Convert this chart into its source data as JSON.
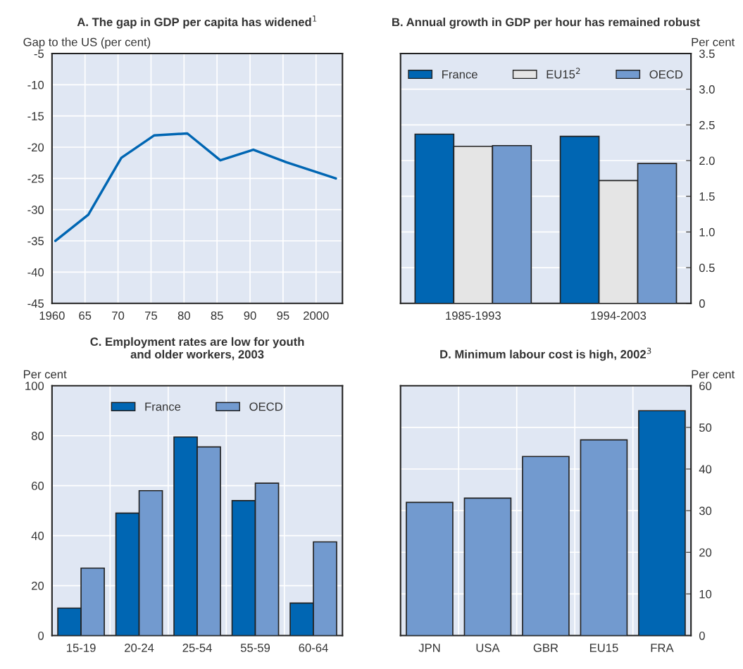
{
  "chart_data": [
    {
      "type": "line",
      "title": "A. The gap in GDP per capita has widened$^{1}$",
      "ylabel": "Gap to the US (per cent)",
      "x": [
        1960.5,
        1965.5,
        1970.5,
        1975.5,
        1980.5,
        1985.5,
        1990.5,
        1995.5,
        2003
      ],
      "series": [
        {
          "color": "#0066b3",
          "values": [
            -35,
            -30.8,
            -21.7,
            -18.1,
            -17.8,
            -22.1,
            -20.4,
            -22.4,
            -25
          ]
        }
      ],
      "xlim": [
        1960,
        2004
      ],
      "xticks": [
        1960,
        {
          "value": 1965,
          "label": "65"
        },
        {
          "value": 1970,
          "label": "70"
        },
        {
          "value": 1975,
          "label": "75"
        },
        {
          "value": 1980,
          "label": "80"
        },
        {
          "value": 1985,
          "label": "85"
        },
        {
          "value": 1990,
          "label": "90"
        },
        {
          "value": 1995,
          "label": "95"
        },
        2000
      ],
      "ylim": [
        -45,
        -5
      ],
      "yticks": [
        -45,
        -40,
        -35,
        -30,
        -25,
        -20,
        -15,
        -10,
        -5
      ],
      "grid": true
    },
    {
      "type": "bar",
      "title": "B. Annual growth in GDP per hour has remained robust",
      "y2label": "Per cent",
      "categories": [
        "1985-1993",
        "1994-2003"
      ],
      "series": [
        {
          "name": "France",
          "color": "#0066b3",
          "axis": "y2",
          "values": [
            2.37,
            2.34
          ]
        },
        {
          "name": "EU15$^{2}$",
          "color": "#e5e5e5",
          "axis": "y2",
          "values": [
            2.2,
            1.72
          ]
        },
        {
          "name": "OECD",
          "color": "#729acf",
          "axis": "y2",
          "values": [
            2.21,
            1.96
          ]
        }
      ],
      "y2lim": [
        0,
        3.5
      ],
      "y2ticks": [
        0,
        0.5,
        {
          "value": 1,
          "label": "1.0"
        },
        1.5,
        {
          "value": 2,
          "label": "2.0"
        },
        2.5,
        {
          "value": 3,
          "label": "3.0"
        },
        3.5
      ],
      "grid": "y",
      "legend": "top"
    },
    {
      "type": "bar",
      "title": "C. Employment rates are low for youth\nand older workers, 2003",
      "ylabel": "Per cent",
      "categories": [
        "15-19",
        "20-24",
        "25-54",
        "55-59",
        "60-64"
      ],
      "series": [
        {
          "name": "France",
          "color": "#0066b3",
          "values": [
            11,
            49,
            79.5,
            54,
            13
          ]
        },
        {
          "name": "OECD",
          "color": "#729acf",
          "values": [
            27,
            58,
            75.5,
            61,
            37.5
          ]
        }
      ],
      "ylim": [
        0,
        100
      ],
      "yticks": [
        0,
        20,
        40,
        60,
        80,
        100
      ],
      "grid": true,
      "legend": "top"
    },
    {
      "type": "bar",
      "title": "D. Minimum labour cost is high, 2002$^{3}$",
      "y2label": "Per cent",
      "categories": [
        "JPN",
        "USA",
        "GBR",
        "EU15",
        "FRA"
      ],
      "series": [
        {
          "axis": "y2",
          "values": [
            32,
            33,
            43,
            47,
            54
          ],
          "colors": [
            "#729acf",
            "#729acf",
            "#729acf",
            "#729acf",
            "#0066b3"
          ]
        }
      ],
      "y2lim": [
        0,
        60
      ],
      "y2ticks": [
        0,
        10,
        20,
        30,
        40,
        50,
        60
      ],
      "grid": true
    }
  ]
}
